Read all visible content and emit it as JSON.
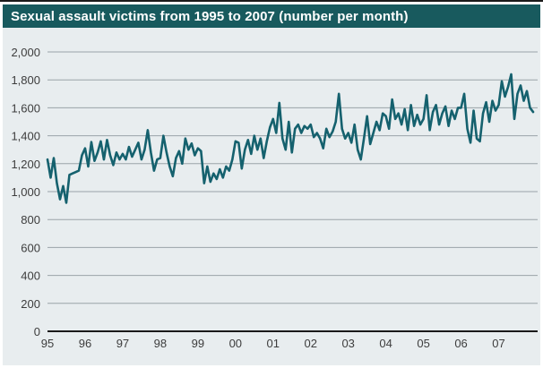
{
  "header": {
    "title": "Sexual assault victims from 1995 to 2007 (number per month)"
  },
  "chart_data": {
    "type": "line",
    "title": "Sexual assault victims from 1995 to 2007 (number per month)",
    "xlabel": "",
    "ylabel": "",
    "ylim": [
      0,
      2000
    ],
    "grid": true,
    "legend": "none",
    "y_ticks": [
      0,
      200,
      400,
      600,
      800,
      1000,
      1200,
      1400,
      1600,
      1800,
      2000
    ],
    "y_tick_labels": [
      "0",
      "200",
      "400",
      "600",
      "800",
      "1,000",
      "1,200",
      "1,400",
      "1,600",
      "1,800",
      "2,000"
    ],
    "x_tick_labels": [
      "95",
      "96",
      "97",
      "98",
      "99",
      "00",
      "01",
      "02",
      "03",
      "04",
      "05",
      "06",
      "07"
    ],
    "series": [
      {
        "name": "Sexual assault victims (number per month)",
        "frequency": "monthly",
        "start": "1995-01",
        "end": "2007-12",
        "values": [
          1230,
          1100,
          1240,
          1060,
          945,
          1040,
          920,
          1120,
          1130,
          1140,
          1150,
          1260,
          1310,
          1180,
          1355,
          1220,
          1280,
          1360,
          1230,
          1370,
          1260,
          1190,
          1280,
          1230,
          1270,
          1230,
          1320,
          1250,
          1300,
          1350,
          1230,
          1300,
          1440,
          1280,
          1150,
          1230,
          1240,
          1400,
          1280,
          1180,
          1110,
          1240,
          1290,
          1200,
          1380,
          1300,
          1345,
          1260,
          1310,
          1290,
          1060,
          1180,
          1070,
          1130,
          1090,
          1160,
          1100,
          1180,
          1150,
          1230,
          1360,
          1350,
          1165,
          1300,
          1370,
          1270,
          1400,
          1300,
          1380,
          1240,
          1360,
          1460,
          1520,
          1420,
          1635,
          1380,
          1300,
          1500,
          1280,
          1450,
          1480,
          1420,
          1470,
          1450,
          1480,
          1390,
          1420,
          1380,
          1310,
          1450,
          1390,
          1430,
          1500,
          1700,
          1450,
          1380,
          1420,
          1350,
          1480,
          1300,
          1230,
          1380,
          1540,
          1340,
          1420,
          1500,
          1440,
          1560,
          1540,
          1450,
          1660,
          1520,
          1560,
          1480,
          1590,
          1440,
          1620,
          1470,
          1550,
          1480,
          1520,
          1690,
          1440,
          1570,
          1620,
          1480,
          1560,
          1610,
          1470,
          1580,
          1520,
          1600,
          1600,
          1700,
          1450,
          1350,
          1580,
          1380,
          1360,
          1560,
          1640,
          1500,
          1650,
          1580,
          1620,
          1790,
          1680,
          1750,
          1840,
          1520,
          1700,
          1760,
          1650,
          1720,
          1600,
          1570
        ]
      }
    ],
    "colors": {
      "line": "#15616E",
      "header_bg": "#185A5E",
      "header_text": "#FFFFFF",
      "panel_bg": "#E8EDEF",
      "grid": "#9AA3A8",
      "axis": "#1A1A1A",
      "tick_text": "#3D3D3D"
    }
  }
}
